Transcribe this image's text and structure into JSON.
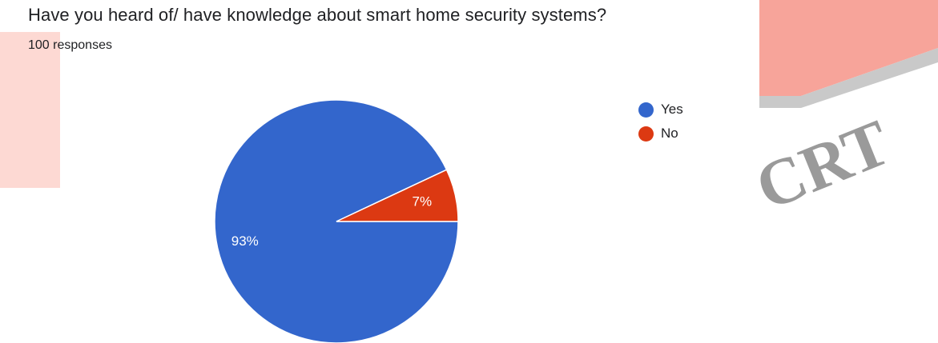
{
  "chart_data": {
    "type": "pie",
    "title": "Have you heard of/ have knowledge about smart home security systems?",
    "subtitle": "100 responses",
    "categories": [
      "Yes",
      "No"
    ],
    "values": [
      93,
      7
    ],
    "labels": [
      "93%",
      "7%"
    ],
    "colors": [
      "#3366cc",
      "#dc3912"
    ],
    "legend_position": "top-right"
  },
  "watermark": {
    "text": "CRT",
    "colors": [
      "#f7a49a",
      "#9a9a9a"
    ]
  }
}
